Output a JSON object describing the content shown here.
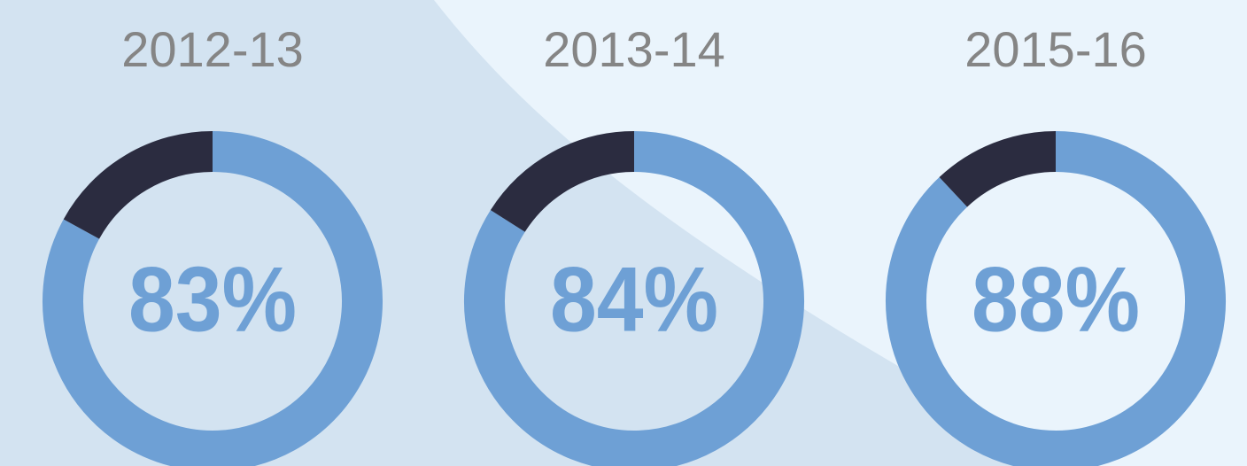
{
  "chart_data": [
    {
      "type": "donut",
      "title": "2012-13",
      "values": [
        83,
        17
      ],
      "value_labels": [
        "83%",
        null
      ],
      "colors": [
        "#6ea0d5",
        "#2b2c40"
      ]
    },
    {
      "type": "donut",
      "title": "2013-14",
      "values": [
        84,
        16
      ],
      "value_labels": [
        "84%",
        null
      ],
      "colors": [
        "#6ea0d5",
        "#2b2c40"
      ]
    },
    {
      "type": "donut",
      "title": "2015-16",
      "values": [
        88,
        12
      ],
      "value_labels": [
        "88%",
        null
      ],
      "colors": [
        "#6ea0d5",
        "#2b2c40"
      ]
    }
  ]
}
